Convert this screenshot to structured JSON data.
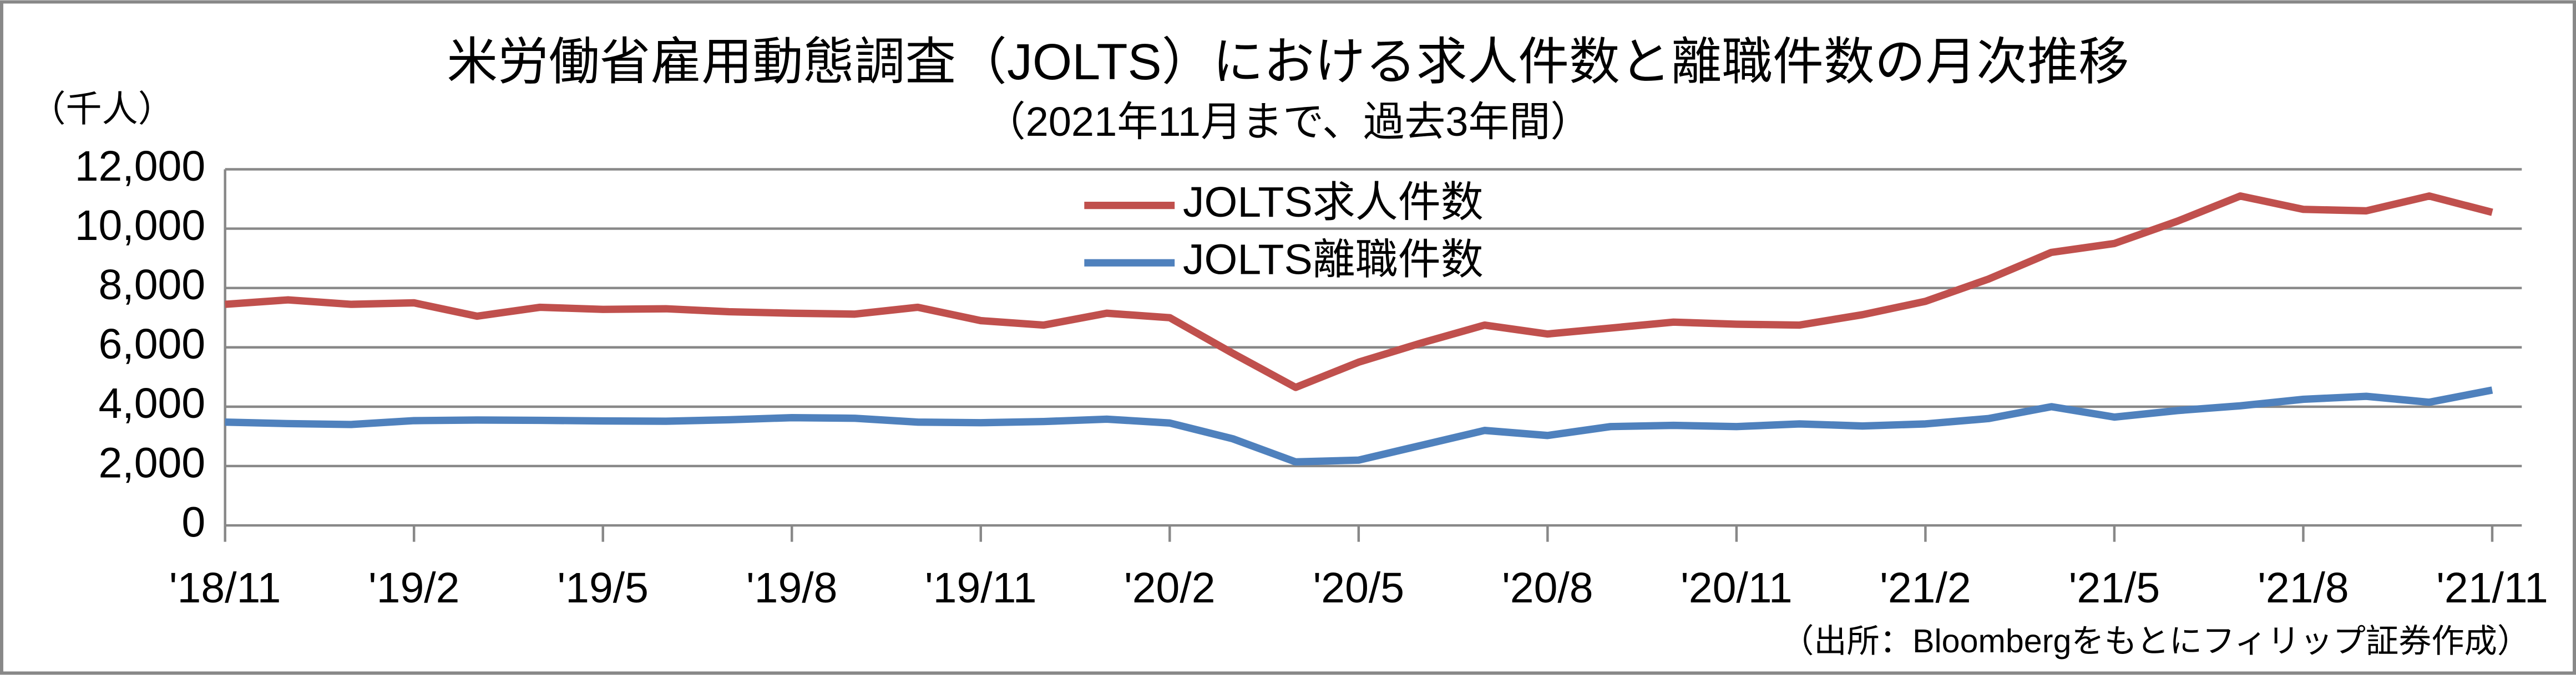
{
  "chart_data": {
    "type": "line",
    "title": "米労働省雇用動態調査（JOLTS）における求人件数と離職件数の月次推移",
    "subtitle": "（2021年11月まで、過去3年間）",
    "y_label": "（千人）",
    "source": "（出所：Bloombergをもとにフィリップ証券作成）",
    "categories": [
      "'18/11",
      null,
      null,
      "'19/2",
      null,
      null,
      "'19/5",
      null,
      null,
      "'19/8",
      null,
      null,
      "'19/11",
      null,
      null,
      "'20/2",
      null,
      null,
      "'20/5",
      null,
      null,
      "'20/8",
      null,
      null,
      "'20/11",
      null,
      null,
      "'21/2",
      null,
      null,
      "'21/5",
      null,
      null,
      "'21/8",
      null,
      null,
      "'21/11"
    ],
    "series": [
      {
        "name": "JOLTS求人件数",
        "color": "#c0504d",
        "values": [
          7450,
          7600,
          7450,
          7500,
          7050,
          7350,
          7280,
          7300,
          7200,
          7150,
          7120,
          7350,
          6900,
          6750,
          7150,
          7000,
          5800,
          4650,
          5500,
          6150,
          6750,
          6450,
          6650,
          6850,
          6780,
          6750,
          7100,
          7550,
          8300,
          9200,
          9500,
          10250,
          11100,
          10650,
          10600,
          11100,
          10550
        ]
      },
      {
        "name": "JOLTS離職件数",
        "color": "#4f81bd",
        "values": [
          3480,
          3430,
          3400,
          3530,
          3550,
          3540,
          3520,
          3510,
          3560,
          3630,
          3610,
          3480,
          3460,
          3500,
          3580,
          3450,
          2920,
          2140,
          2200,
          2700,
          3200,
          3030,
          3330,
          3370,
          3330,
          3420,
          3350,
          3420,
          3600,
          4000,
          3650,
          3870,
          4030,
          4250,
          4350,
          4150,
          4560
        ]
      }
    ],
    "ylim": [
      0,
      12000
    ],
    "yticks": [
      0,
      {
        "value": 2000,
        "label": "2,000"
      },
      {
        "value": 4000,
        "label": "4,000"
      },
      {
        "value": 6000,
        "label": "6,000"
      },
      {
        "value": 8000,
        "label": "8,000"
      },
      {
        "value": 10000,
        "label": "10,000"
      },
      {
        "value": 12000,
        "label": "12,000"
      }
    ],
    "grid": true
  }
}
